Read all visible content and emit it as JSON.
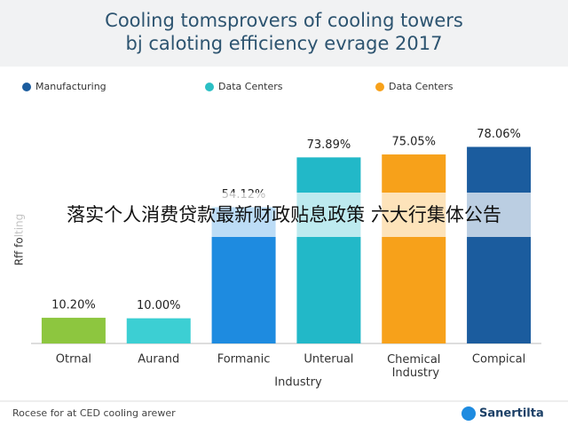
{
  "chart_data": {
    "type": "bar",
    "title": "Cooling tomsprovers of cooling towers",
    "subtitle": "bj caloting efficiency evrage 2017",
    "legend": [
      {
        "name": "Manufacturing",
        "color": "#1b5c9e"
      },
      {
        "name": "Data Centers",
        "color": "#2bbfc4"
      },
      {
        "name": "Data Centers",
        "color": "#f7a11a"
      }
    ],
    "categories": [
      "Otrnal",
      "Aurand",
      "Formanic",
      "Unterual",
      "Chemical Industry",
      "Compical"
    ],
    "values": [
      10.2,
      10,
      54.12,
      73.89,
      75.05,
      78.06
    ],
    "value_labels": [
      "10.20%",
      "10.00%",
      "54.12%",
      "73.89%",
      "75.05%",
      "78.06%"
    ],
    "colors": [
      "#8dc63f",
      "#3ccfd3",
      "#1e8be0",
      "#22b8c8",
      "#f7a11a",
      "#1b5c9e"
    ],
    "x_label": "Industry",
    "y_label": "Rff folting",
    "ylim": [
      0,
      80
    ],
    "footer": "Rocese for at CED cooling arewer",
    "logo": "Sanertilta",
    "overlay_banner": "落实个人消费贷款最新财政贴息政策 六大行集体公告"
  }
}
